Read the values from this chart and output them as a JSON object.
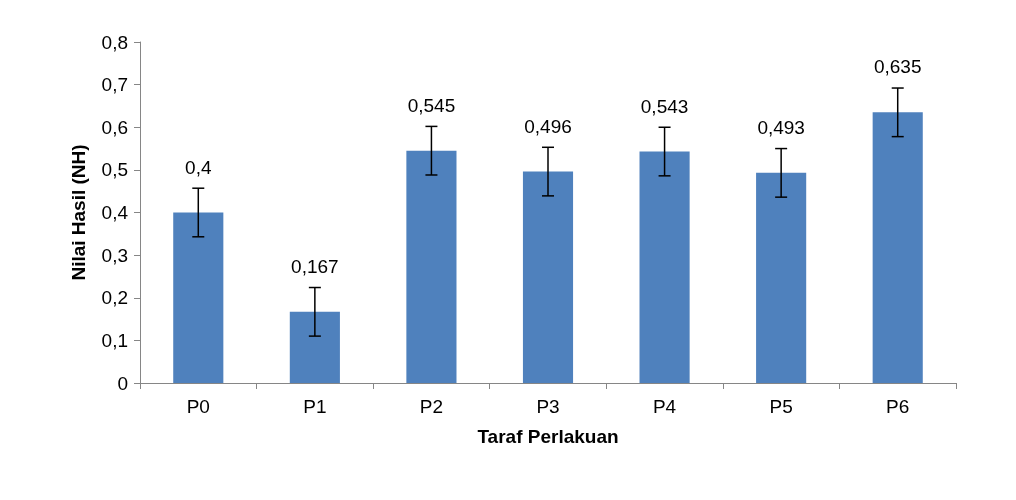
{
  "chart_data": {
    "type": "bar",
    "xlabel": "Taraf Perlakuan",
    "ylabel": "Nilai Hasil (NH)",
    "categories": [
      "P0",
      "P1",
      "P2",
      "P3",
      "P4",
      "P5",
      "P6"
    ],
    "values": [
      0.4,
      0.167,
      0.545,
      0.496,
      0.543,
      0.493,
      0.635
    ],
    "value_labels": [
      "0,4",
      "0,167",
      "0,545",
      "0,496",
      "0,543",
      "0,493",
      "0,635"
    ],
    "errors": [
      0.057,
      0.057,
      0.057,
      0.057,
      0.057,
      0.057,
      0.057
    ],
    "color": "#4f81bd",
    "ylim": [
      0,
      0.8
    ],
    "yticks": [
      0,
      {
        "value": 0.1,
        "label": "0,1"
      },
      {
        "value": 0.2,
        "label": "0,2"
      },
      {
        "value": 0.3,
        "label": "0,3"
      },
      {
        "value": 0.4,
        "label": "0,4"
      },
      {
        "value": 0.5,
        "label": "0,5"
      },
      {
        "value": 0.6,
        "label": "0,6"
      },
      {
        "value": 0.7,
        "label": "0,7"
      },
      {
        "value": 0.8,
        "label": "0,8"
      }
    ],
    "grid": false
  }
}
